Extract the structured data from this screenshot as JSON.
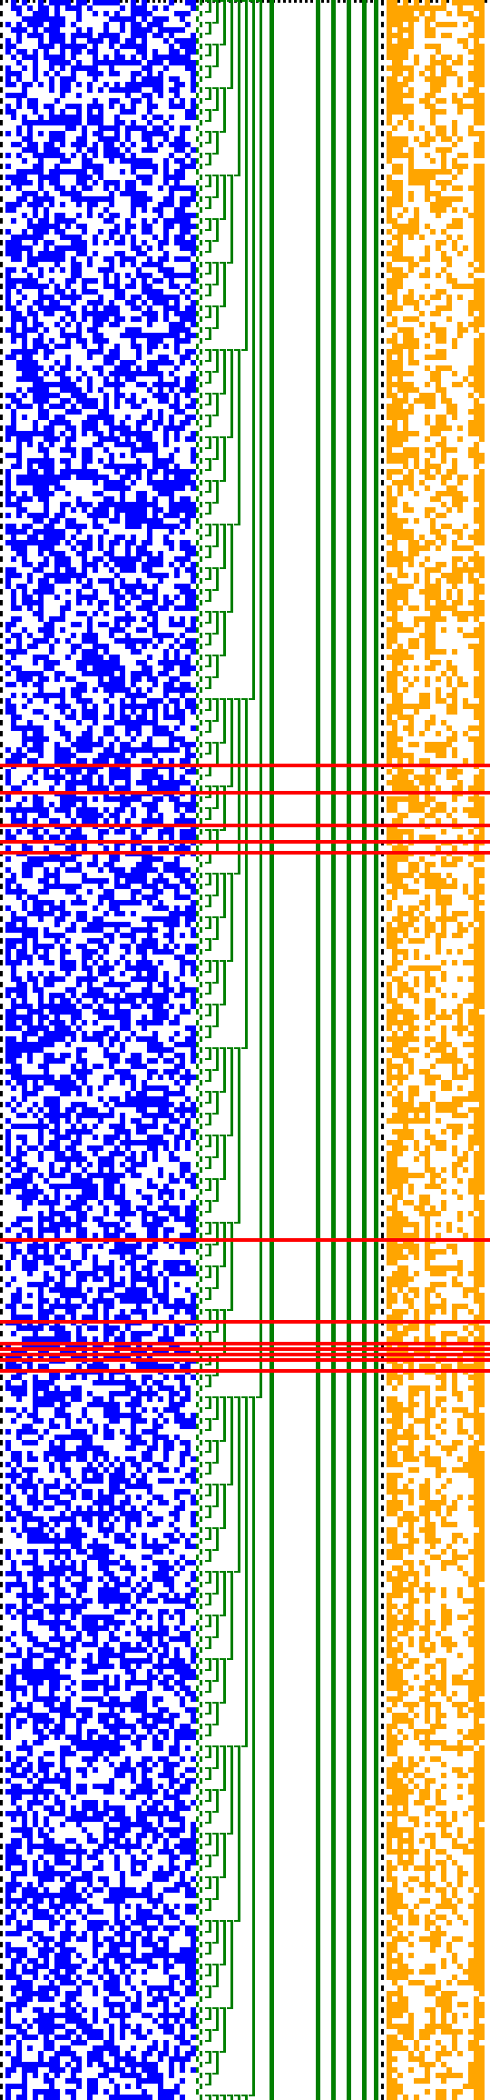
{
  "colors": {
    "background": "#ffffff",
    "state": "#0000ff",
    "carry": "#008000",
    "counter": "#ffa500",
    "marker": "#ff0000",
    "border": "#000000"
  },
  "grid": {
    "rows": 385,
    "state_columns": 36,
    "counter_columns": 20
  },
  "carry_structure": {
    "levels": 10,
    "steady_lines": 7
  },
  "marker_rows": [
    140,
    145,
    151,
    154,
    156,
    227,
    242,
    246,
    247,
    248,
    249,
    251
  ]
}
